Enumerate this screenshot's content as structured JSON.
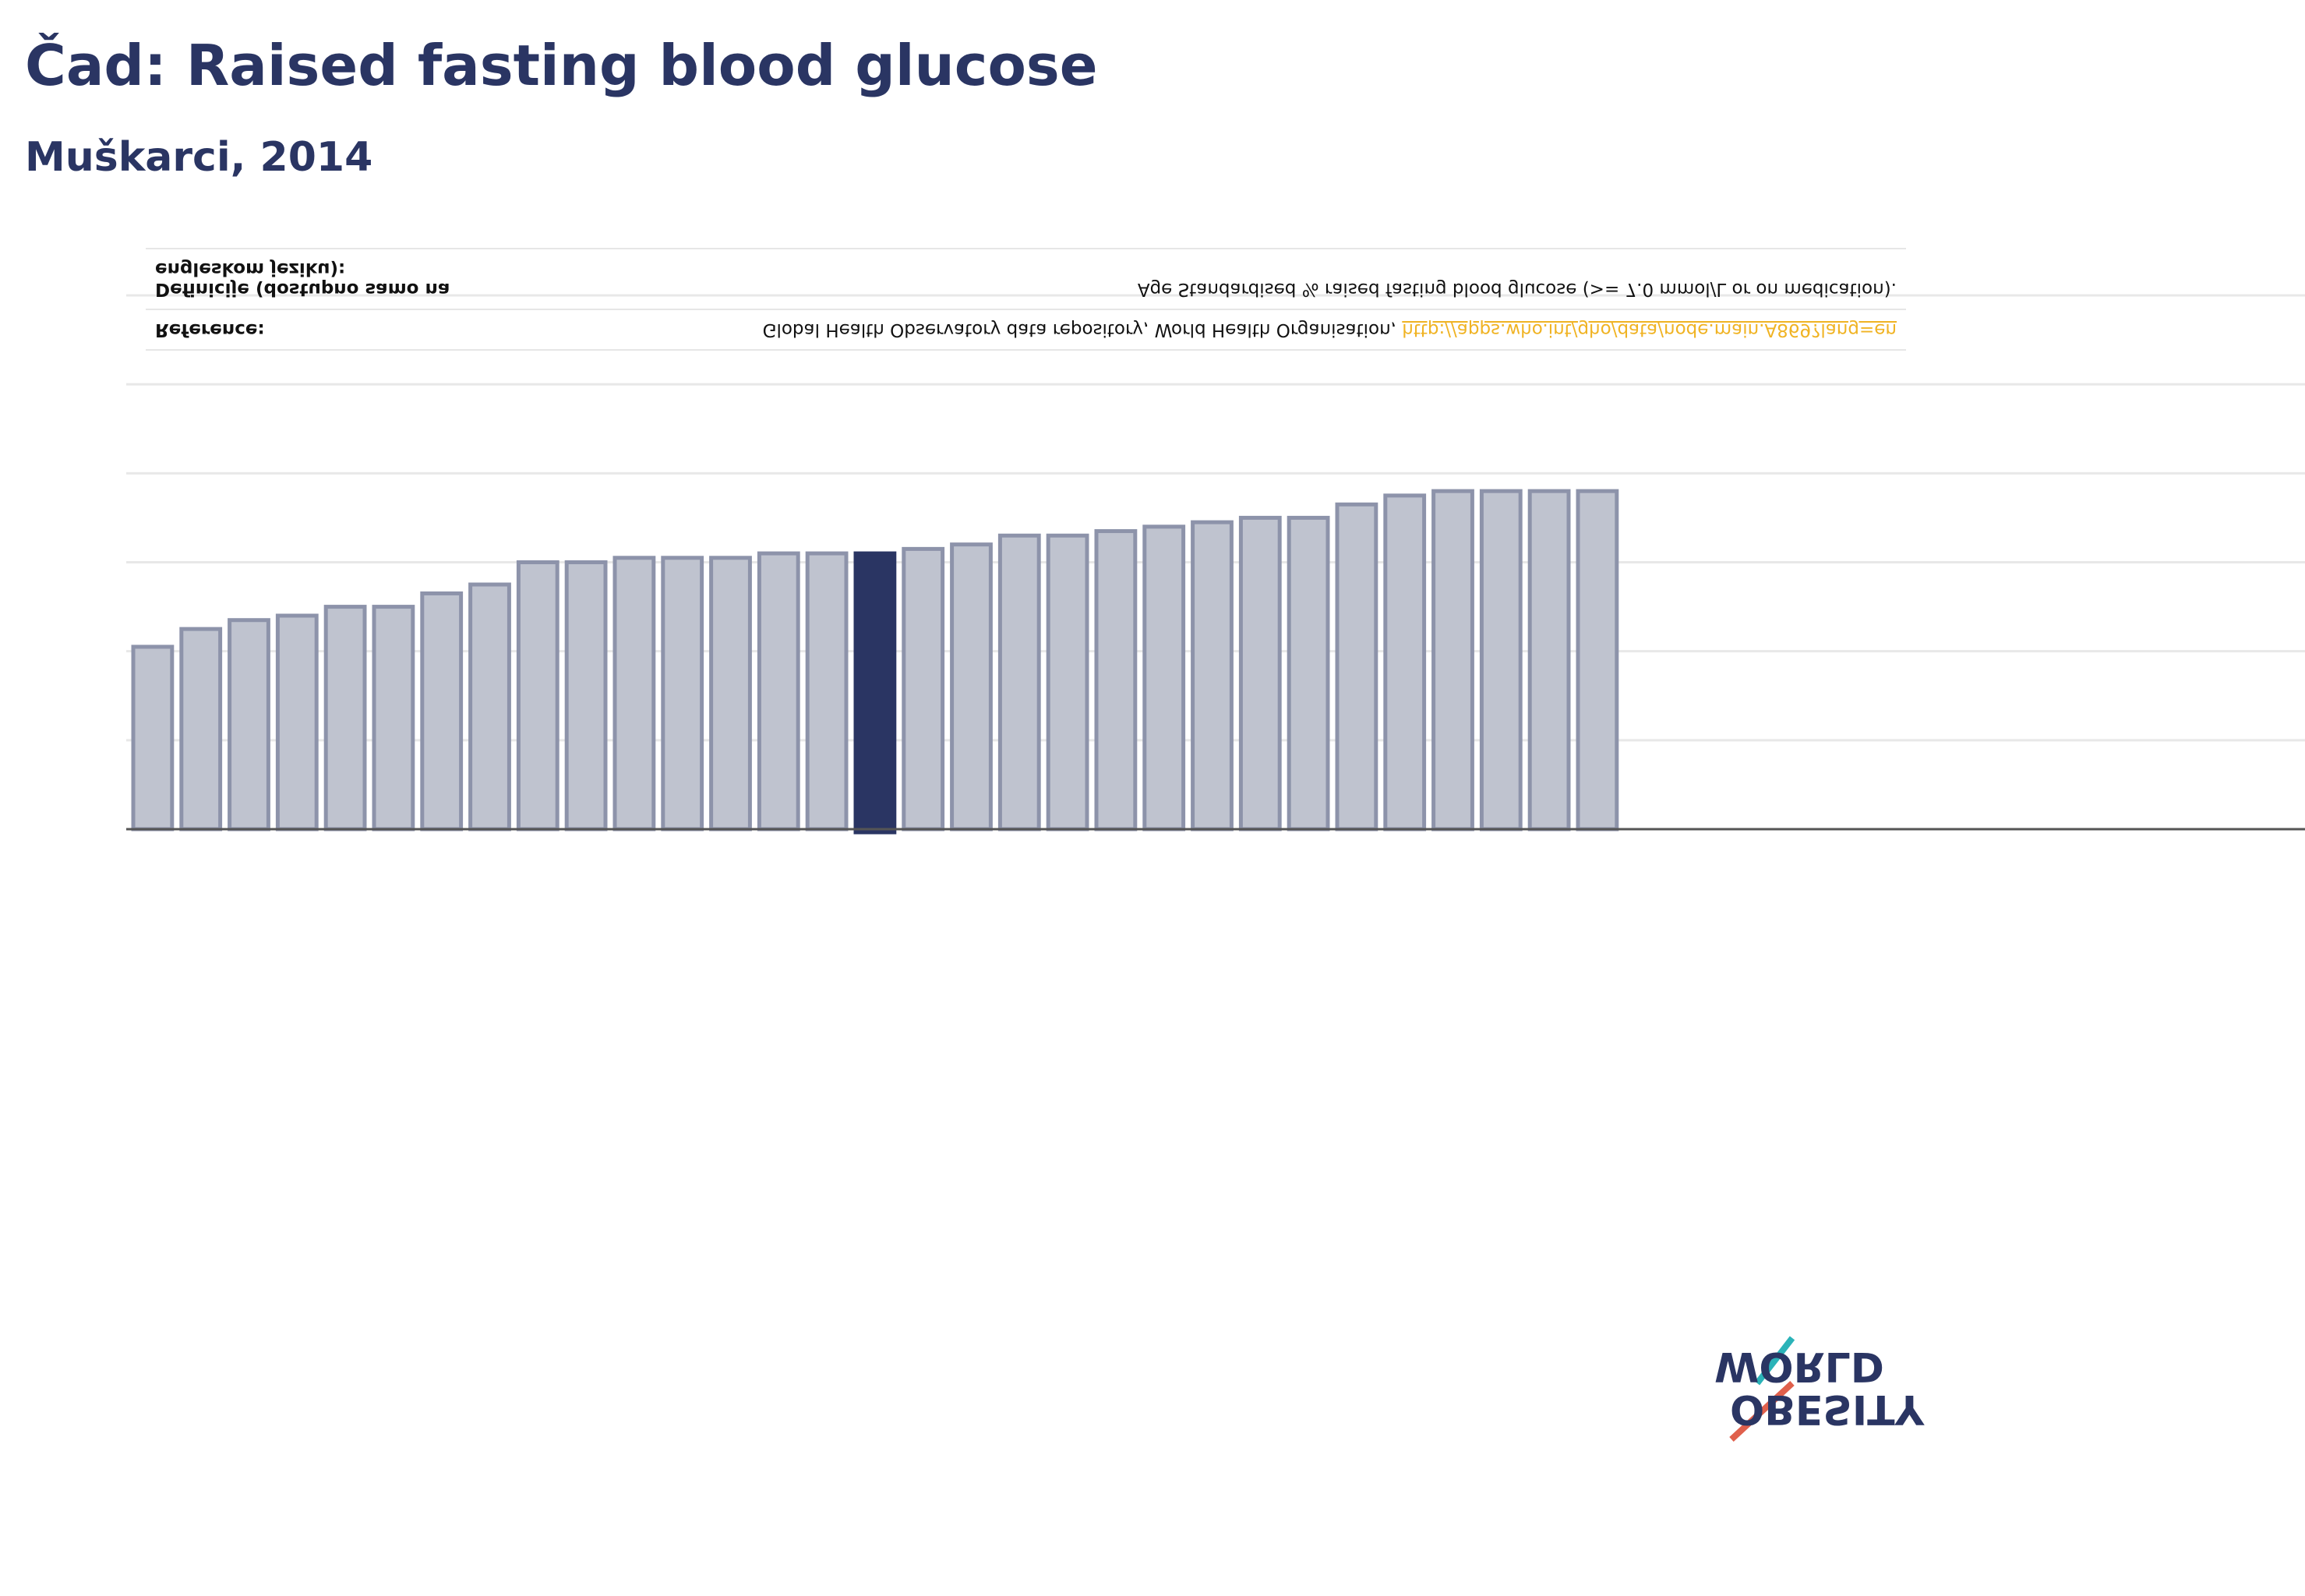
{
  "chart_data": {
    "type": "bar",
    "title": "Čad: Raised fasting blood glucose",
    "subtitle": "Muškarci, 2014",
    "categories": [
      null,
      null,
      null,
      null,
      null,
      null,
      null,
      null,
      null,
      null,
      null,
      null,
      null,
      null,
      null,
      null,
      null,
      null,
      null,
      null,
      null,
      null,
      null,
      null,
      null,
      null,
      null,
      null,
      null,
      null,
      null
    ],
    "values": [
      4.1,
      4.5,
      4.7,
      4.8,
      5.0,
      5.0,
      5.3,
      5.5,
      6.0,
      6.0,
      6.1,
      6.1,
      6.1,
      6.2,
      6.2,
      6.2,
      6.3,
      6.4,
      6.6,
      6.6,
      6.7,
      6.8,
      6.9,
      7.0,
      7.0,
      7.3,
      7.5,
      7.6,
      7.6,
      7.6,
      7.6
    ],
    "colors": [
      "#bfc3cf",
      "#bfc3cf",
      "#bfc3cf",
      "#bfc3cf",
      "#bfc3cf",
      "#bfc3cf",
      "#bfc3cf",
      "#bfc3cf",
      "#bfc3cf",
      "#bfc3cf",
      "#bfc3cf",
      "#bfc3cf",
      "#bfc3cf",
      "#bfc3cf",
      "#bfc3cf",
      "#2a3563",
      "#bfc3cf",
      "#bfc3cf",
      "#bfc3cf",
      "#bfc3cf",
      "#bfc3cf",
      "#bfc3cf",
      "#bfc3cf",
      "#bfc3cf",
      "#bfc3cf",
      "#bfc3cf",
      "#bfc3cf",
      "#bfc3cf",
      "#bfc3cf",
      "#bfc3cf",
      "#bfc3cf"
    ],
    "ylim": [
      0,
      12
    ],
    "yticks": [
      0,
      2,
      4,
      6,
      8,
      10,
      12
    ],
    "grid": true
  },
  "table": {
    "rows": [
      [
        "Reference:",
        "Global Health Observatory data repository, World Health Organisation, ",
        "http://apps.who.int/gho/data/node.main.A869?lang=en"
      ],
      [
        "Definicije (dostupno samo na engleskom jeziku):",
        "Age Standardised % raised fasting blood glucose (>= 7.0 mmol/L or on medication)."
      ]
    ]
  },
  "logo": {
    "top": "OBESITY",
    "bottom": "WORLD"
  }
}
